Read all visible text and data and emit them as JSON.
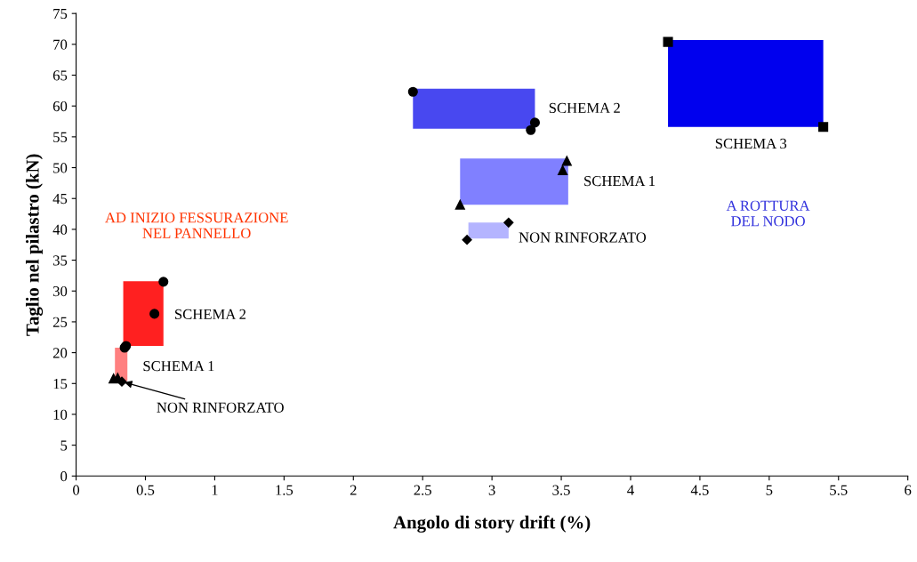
{
  "chart_data": {
    "type": "scatter",
    "xlabel": "Angolo di story drift (%)",
    "ylabel": "Taglio nel pilastro (kN)",
    "xlim": [
      0,
      6
    ],
    "ylim": [
      0,
      75
    ],
    "xticks": [
      0,
      0.5,
      1,
      1.5,
      2,
      2.5,
      3,
      3.5,
      4,
      4.5,
      5,
      5.5,
      6
    ],
    "yticks": [
      0,
      5,
      10,
      15,
      20,
      25,
      30,
      35,
      40,
      45,
      50,
      55,
      60,
      65,
      70,
      75
    ],
    "grid": false,
    "legend": false,
    "series": [
      {
        "type": "area",
        "color": "#ff8080",
        "x": [
          0.28,
          0.37
        ],
        "values": [
          null,
          null
        ],
        "lower": [
          15.4,
          15.4
        ],
        "upper": [
          20.8,
          20.8
        ]
      },
      {
        "type": "area",
        "color": "#ff2020",
        "x": [
          0.34,
          0.63
        ],
        "values": [
          null,
          null
        ],
        "lower": [
          21.1,
          21.1
        ],
        "upper": [
          31.6,
          31.6
        ]
      },
      {
        "type": "area",
        "color": "#b4b4ff",
        "x": [
          2.83,
          3.12
        ],
        "values": [
          null,
          null
        ],
        "lower": [
          38.5,
          38.5
        ],
        "upper": [
          41.1,
          41.1
        ]
      },
      {
        "type": "area",
        "color": "#8080ff",
        "x": [
          2.77,
          3.55
        ],
        "values": [
          null,
          null
        ],
        "lower": [
          44.0,
          44.0
        ],
        "upper": [
          51.5,
          51.5
        ]
      },
      {
        "type": "area",
        "color": "#4848f0",
        "x": [
          2.43,
          3.31
        ],
        "values": [
          null,
          null
        ],
        "lower": [
          56.3,
          56.3
        ],
        "upper": [
          62.8,
          62.8
        ]
      },
      {
        "type": "area",
        "color": "#0000ee",
        "x": [
          4.27,
          5.39
        ],
        "values": [
          null,
          null
        ],
        "lower": [
          56.6,
          56.6
        ],
        "upper": [
          70.7,
          70.7
        ]
      },
      {
        "marker": "triangle",
        "color": "#000000",
        "x": [
          0.27,
          0.3,
          2.77,
          3.51,
          3.54
        ],
        "values": [
          15.8,
          15.9,
          44.0,
          49.6,
          51.1
        ]
      },
      {
        "marker": "diamond",
        "color": "#000000",
        "x": [
          0.33,
          2.82,
          3.12
        ],
        "values": [
          15.3,
          38.3,
          41.1
        ]
      },
      {
        "marker": "circle",
        "color": "#000000",
        "x": [
          0.35,
          0.36,
          0.565,
          0.63,
          2.43,
          3.28,
          3.31
        ],
        "values": [
          20.8,
          21.1,
          26.3,
          31.5,
          62.3,
          56.1,
          57.3
        ]
      },
      {
        "marker": "square",
        "color": "#000000",
        "x": [
          4.27,
          5.39
        ],
        "values": [
          70.4,
          56.6
        ]
      }
    ],
    "annotations": [
      "AD INIZIO FESSURAZIONE\nNEL PANNELLO",
      "SCHEMA 2",
      "SCHEMA 1",
      {
        "text": "NON RINFORZATO",
        "x": 0.33,
        "y": 15.3
      },
      "SCHEMA 2",
      "SCHEMA 1",
      "NON RINFORZATO",
      "SCHEMA 3",
      "A ROTTURA\nDEL NODO"
    ]
  }
}
